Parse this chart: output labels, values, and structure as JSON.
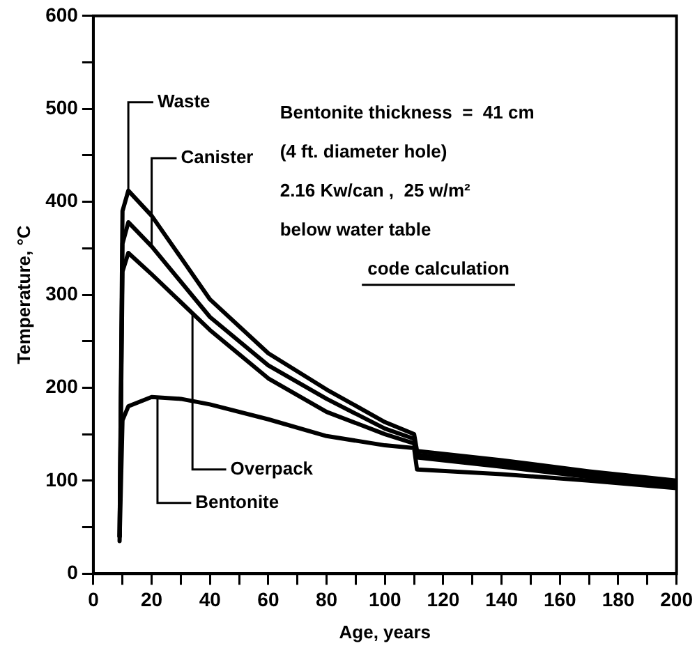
{
  "chart_data": {
    "type": "line",
    "xlabel": "Age, years",
    "ylabel": "Temperature, °C",
    "xlim": [
      0,
      200
    ],
    "ylim": [
      0,
      600
    ],
    "xticks": [
      0,
      {
        "value": 10,
        "label": null
      },
      20,
      {
        "value": 30,
        "label": null
      },
      40,
      {
        "value": 50,
        "label": null
      },
      60,
      {
        "value": 70,
        "label": null
      },
      80,
      {
        "value": 90,
        "label": null
      },
      100,
      {
        "value": 110,
        "label": null
      },
      120,
      {
        "value": 130,
        "label": null
      },
      140,
      {
        "value": 150,
        "label": null
      },
      160,
      {
        "value": 170,
        "label": null
      },
      180,
      {
        "value": 190,
        "label": null
      },
      200
    ],
    "yticks": [
      0,
      {
        "value": 50,
        "label": null
      },
      100,
      {
        "value": 150,
        "label": null
      },
      200,
      {
        "value": 250,
        "label": null
      },
      300,
      {
        "value": 350,
        "label": null
      },
      400,
      {
        "value": 450,
        "label": null
      },
      500,
      {
        "value": 550,
        "label": null
      },
      600
    ],
    "grid": false,
    "legend": false,
    "marker": "none",
    "line_style": "solid",
    "series": [
      {
        "color": "#000000",
        "x": [
          9,
          10,
          12,
          20,
          40,
          60,
          80,
          100,
          110,
          111,
          140,
          170,
          200
        ],
        "values": [
          40,
          390,
          412,
          385,
          295,
          237,
          198,
          163,
          150,
          132,
          122,
          110,
          100
        ]
      },
      {
        "color": "#000000",
        "x": [
          9,
          10,
          12,
          20,
          40,
          60,
          80,
          100,
          110,
          111,
          140,
          170,
          200
        ],
        "values": [
          40,
          355,
          378,
          352,
          276,
          224,
          188,
          156,
          145,
          128,
          118,
          107,
          97
        ]
      },
      {
        "color": "#000000",
        "x": [
          9,
          10,
          12,
          20,
          40,
          60,
          80,
          100,
          110,
          111,
          140,
          170,
          200
        ],
        "values": [
          40,
          325,
          345,
          322,
          262,
          210,
          174,
          150,
          140,
          125,
          115,
          104,
          95
        ]
      },
      {
        "color": "#000000",
        "x": [
          9,
          10,
          12,
          20,
          30,
          40,
          60,
          80,
          100,
          110,
          111,
          140,
          170,
          200
        ],
        "values": [
          35,
          165,
          180,
          190,
          188,
          182,
          166,
          148,
          138,
          135,
          112,
          107,
          100,
          92
        ]
      }
    ],
    "annotations": [
      {
        "text": "Waste",
        "x": 12,
        "y": 412
      },
      {
        "text": "Canister",
        "x": 20,
        "y": 352
      },
      {
        "text": "Overpack",
        "x": 34,
        "y": 280
      },
      {
        "text": "Bentonite",
        "x": 22,
        "y": 190
      },
      "Bentonite thickness  =  41 cm",
      "(4 ft. diameter hole)",
      "2.16 Kw/can ,  25 w/m²",
      "below water table",
      "code calculation"
    ]
  }
}
